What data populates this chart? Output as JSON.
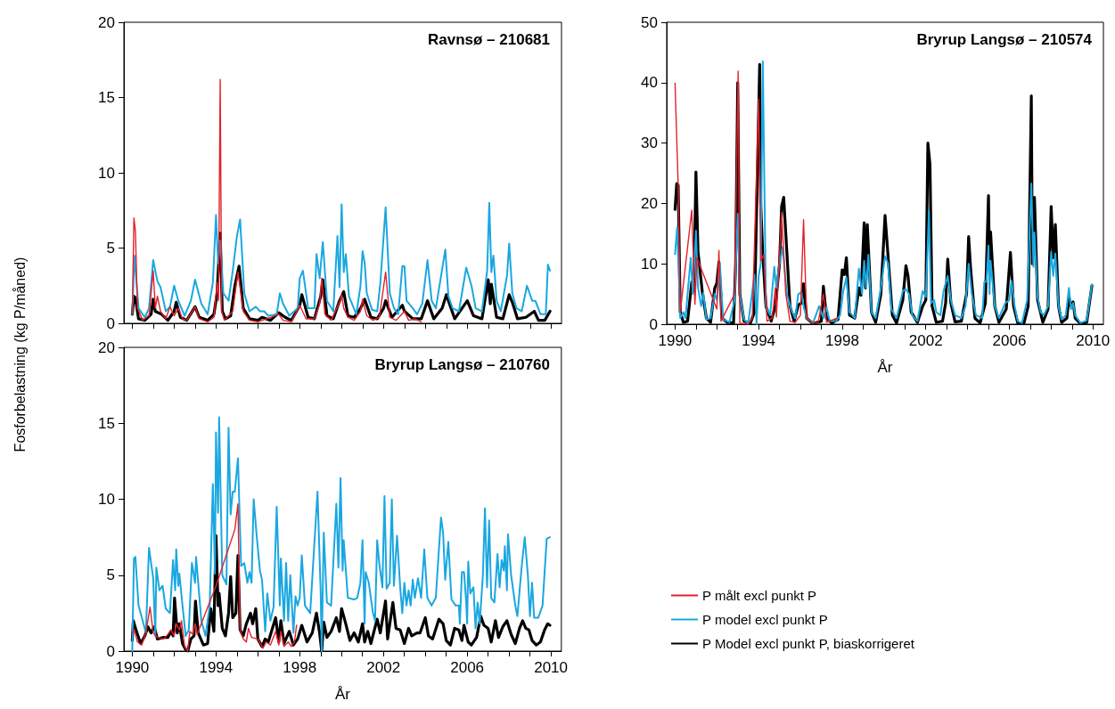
{
  "chart_data": [
    {
      "type": "line",
      "title": "Ravnsø – 210681",
      "ylabel": "Fosforbelastning (kg P/måned)",
      "xlim": [
        1989.6,
        2010.5
      ],
      "xticks": [
        1990,
        {
          "value": 1991,
          "label": null
        },
        {
          "value": 1992,
          "label": null
        },
        {
          "value": 1993,
          "label": null
        },
        1994,
        {
          "value": 1995,
          "label": null
        },
        {
          "value": 1996,
          "label": null
        },
        {
          "value": 1997,
          "label": null
        },
        1998,
        {
          "value": 1999,
          "label": null
        },
        {
          "value": 2000,
          "label": null
        },
        {
          "value": 2001,
          "label": null
        },
        2002,
        {
          "value": 2003,
          "label": null
        },
        {
          "value": 2004,
          "label": null
        },
        {
          "value": 2005,
          "label": null
        },
        2006,
        {
          "value": 2007,
          "label": null
        },
        {
          "value": 2008,
          "label": null
        },
        {
          "value": 2009,
          "label": null
        },
        2010
      ],
      "ylim": [
        0,
        20
      ],
      "yticks": [
        0,
        5,
        10,
        15,
        20
      ],
      "tick_labels": "y",
      "marker": "none",
      "line_style": "solid",
      "legend": false,
      "series": [
        {
          "color": "#e3202a",
          "x": [
            1990.0,
            1990.08,
            1990.15,
            1990.25,
            1990.5,
            1990.8,
            1991.0,
            1991.1,
            1991.2,
            1991.35,
            1991.6,
            1991.8,
            1992.0,
            1992.2,
            1992.4,
            1992.6,
            1993.0,
            1993.2,
            1993.6,
            1993.9,
            1994.05,
            1994.12,
            1994.2,
            1994.27,
            1994.4,
            1994.8,
            1995.05,
            1995.3,
            1995.6,
            1996.0,
            1997.0,
            1997.2,
            1997.6,
            1998.0,
            1998.3,
            1998.7,
            1998.95,
            1999.05,
            1999.2,
            1999.5,
            1999.9,
            2000.0,
            2000.1,
            2000.3,
            2000.6,
            2000.9,
            2001.0,
            2001.2,
            2001.5,
            2001.8,
            2002.1,
            2002.3,
            2002.6,
            2003.0,
            2003.2,
            2003.5,
            2003.8
          ],
          "values": [
            0.6,
            7.0,
            6.1,
            1.0,
            0.2,
            0.5,
            3.5,
            1.0,
            1.8,
            0.8,
            0.3,
            1.1,
            0.5,
            1.0,
            0.3,
            0.2,
            1.1,
            0.3,
            0.1,
            0.4,
            2.7,
            1.5,
            16.2,
            0.8,
            0.2,
            0.8,
            3.4,
            0.8,
            0.2,
            0.1,
            0.6,
            0.2,
            0.1,
            1.2,
            0.3,
            0.3,
            1.3,
            3.0,
            0.6,
            0.2,
            1.4,
            1.9,
            1.0,
            0.4,
            0.2,
            0.8,
            1.6,
            0.5,
            0.2,
            0.4,
            3.4,
            0.4,
            0.2,
            0.8,
            0.2,
            0.3,
            0.1
          ]
        },
        {
          "color": "#1aa7e0",
          "x": [
            1990.0,
            1990.1,
            1990.3,
            1990.6,
            1990.8,
            1991.0,
            1991.2,
            1991.35,
            1991.6,
            1991.8,
            1992.0,
            1992.2,
            1992.5,
            1992.8,
            1993.0,
            1993.3,
            1993.6,
            1993.85,
            1994.0,
            1994.1,
            1994.2,
            1994.35,
            1994.6,
            1994.8,
            1995.0,
            1995.15,
            1995.35,
            1995.6,
            1995.9,
            1996.1,
            1996.3,
            1996.5,
            1996.9,
            1997.05,
            1997.2,
            1997.5,
            1997.9,
            1998.0,
            1998.15,
            1998.4,
            1998.7,
            1998.8,
            1998.95,
            1999.1,
            1999.3,
            1999.6,
            1999.8,
            1999.9,
            2000.0,
            2000.1,
            2000.2,
            2000.35,
            2000.7,
            2000.9,
            2001.0,
            2001.1,
            2001.2,
            2001.45,
            2001.7,
            2001.85,
            2002.1,
            2002.3,
            2002.5,
            2002.7,
            2002.9,
            2003.0,
            2003.1,
            2003.4,
            2003.6,
            2003.85,
            2004.1,
            2004.3,
            2004.5,
            2004.8,
            2004.95,
            2005.1,
            2005.3,
            2005.6,
            2005.95,
            2006.2,
            2006.4,
            2006.7,
            2006.95,
            2007.05,
            2007.15,
            2007.25,
            2007.4,
            2007.6,
            2007.9,
            2008.0,
            2008.15,
            2008.35,
            2008.6,
            2008.85,
            2009.1,
            2009.25,
            2009.5,
            2009.75,
            2009.85,
            2009.95
          ],
          "values": [
            0.6,
            4.5,
            1.0,
            0.4,
            1.0,
            4.2,
            2.8,
            2.4,
            0.8,
            1.1,
            2.5,
            1.5,
            0.5,
            1.5,
            2.9,
            1.3,
            0.6,
            2.7,
            7.2,
            4.0,
            5.5,
            2.0,
            1.5,
            3.5,
            5.8,
            6.9,
            2.0,
            0.8,
            1.1,
            0.8,
            0.8,
            0.5,
            0.6,
            2.0,
            1.3,
            0.5,
            1.0,
            3.0,
            3.5,
            1.0,
            1.0,
            4.6,
            3.0,
            5.4,
            1.5,
            0.8,
            5.8,
            2.4,
            7.9,
            3.4,
            4.6,
            1.8,
            0.6,
            2.5,
            4.8,
            4.0,
            2.0,
            0.9,
            0.8,
            2.7,
            7.7,
            2.0,
            1.0,
            0.6,
            3.8,
            3.8,
            1.5,
            1.0,
            0.6,
            1.3,
            4.2,
            1.5,
            1.0,
            3.6,
            4.9,
            1.8,
            1.0,
            0.8,
            3.7,
            2.5,
            1.0,
            0.8,
            3.5,
            8.0,
            3.4,
            4.5,
            1.5,
            0.8,
            3.2,
            5.3,
            2.0,
            1.0,
            0.8,
            2.5,
            1.5,
            1.5,
            0.6,
            0.6,
            3.9,
            3.5
          ]
        },
        {
          "color": "#000000",
          "x": [
            1990.0,
            1990.08,
            1990.15,
            1990.3,
            1990.6,
            1990.9,
            1991.0,
            1991.1,
            1991.4,
            1991.7,
            1992.0,
            1992.1,
            1992.3,
            1992.6,
            1993.0,
            1993.2,
            1993.6,
            1993.9,
            1994.05,
            1994.2,
            1994.3,
            1994.45,
            1994.7,
            1994.9,
            1995.1,
            1995.3,
            1995.6,
            1996.0,
            1996.2,
            1996.6,
            1997.0,
            1997.3,
            1997.6,
            1998.0,
            1998.1,
            1998.4,
            1998.7,
            1999.0,
            1999.1,
            1999.3,
            1999.6,
            1999.9,
            2000.1,
            2000.3,
            2000.6,
            2000.9,
            2001.1,
            2001.4,
            2001.7,
            2002.0,
            2002.1,
            2002.4,
            2002.9,
            2003.0,
            2003.4,
            2003.8,
            2004.1,
            2004.4,
            2004.8,
            2005.0,
            2005.1,
            2005.4,
            2006.0,
            2006.3,
            2006.7,
            2007.0,
            2007.1,
            2007.15,
            2007.4,
            2007.7,
            2008.0,
            2008.15,
            2008.4,
            2008.8,
            2009.2,
            2009.4,
            2009.7,
            2009.95
          ],
          "values": [
            0.6,
            1.8,
            1.7,
            0.3,
            0.2,
            0.6,
            1.6,
            0.8,
            0.6,
            0.2,
            0.8,
            1.4,
            0.4,
            0.2,
            1.1,
            0.4,
            0.2,
            0.6,
            2.0,
            6.0,
            0.8,
            0.3,
            0.5,
            2.5,
            3.8,
            1.0,
            0.3,
            0.2,
            0.4,
            0.2,
            0.7,
            0.4,
            0.2,
            1.2,
            1.9,
            0.4,
            0.3,
            1.8,
            2.9,
            0.5,
            0.3,
            1.5,
            2.1,
            0.5,
            0.4,
            1.0,
            1.6,
            0.4,
            0.3,
            1.0,
            1.5,
            0.4,
            1.2,
            0.8,
            0.3,
            0.3,
            1.5,
            0.3,
            1.0,
            1.9,
            1.5,
            0.3,
            1.5,
            0.5,
            0.3,
            2.9,
            1.3,
            2.6,
            0.4,
            0.3,
            1.9,
            1.4,
            0.3,
            0.4,
            0.8,
            0.2,
            0.2,
            0.8
          ]
        }
      ]
    },
    {
      "type": "line",
      "title": "Bryrup Langsø – 210574",
      "xlabel": "År",
      "xlim": [
        1989.6,
        2010.5
      ],
      "xticks": [
        1990,
        {
          "value": 1991,
          "label": null
        },
        {
          "value": 1992,
          "label": null
        },
        {
          "value": 1993,
          "label": null
        },
        1994,
        {
          "value": 1995,
          "label": null
        },
        {
          "value": 1996,
          "label": null
        },
        {
          "value": 1997,
          "label": null
        },
        1998,
        {
          "value": 1999,
          "label": null
        },
        {
          "value": 2000,
          "label": null
        },
        {
          "value": 2001,
          "label": null
        },
        2002,
        {
          "value": 2003,
          "label": null
        },
        {
          "value": 2004,
          "label": null
        },
        {
          "value": 2005,
          "label": null
        },
        2006,
        {
          "value": 2007,
          "label": null
        },
        {
          "value": 2008,
          "label": null
        },
        {
          "value": 2009,
          "label": null
        },
        2010
      ],
      "ylim": [
        0,
        50
      ],
      "yticks": [
        0,
        10,
        20,
        30,
        40,
        50
      ],
      "marker": "none",
      "line_style": "solid",
      "legend": "bottom",
      "series": [
        {
          "name": "P målt excl punkt P",
          "color": "#e3202a",
          "x": [
            1990.0,
            1990.15,
            1990.25,
            1990.8,
            1990.95,
            1991.05,
            1992.0,
            1992.1,
            1992.2,
            1992.85,
            1993.02,
            1993.1,
            1993.5,
            1993.7,
            1994.0,
            1994.1,
            1994.25,
            1994.4,
            1994.65,
            1994.8,
            1994.85,
            1995.1,
            1995.3,
            1995.5,
            1995.75,
            1996.0,
            1996.15,
            1996.3,
            1996.6,
            1996.85,
            1997.1,
            1997.25,
            1997.75
          ],
          "values": [
            39.9,
            23.0,
            2.0,
            18.9,
            3.3,
            11.0,
            2.5,
            12.2,
            0.5,
            5.0,
            41.9,
            0.2,
            0.0,
            1.0,
            37.3,
            10.5,
            11.5,
            0.5,
            1.0,
            6.0,
            1.2,
            18.5,
            5.0,
            0.5,
            0.3,
            1.5,
            17.3,
            1.0,
            0.2,
            0.3,
            5.0,
            0.3,
            1.0
          ]
        },
        {
          "name": "P model excl punkt P",
          "color": "#1aa7e0",
          "x": [
            1990.0,
            1990.1,
            1990.25,
            1990.4,
            1990.5,
            1990.75,
            1990.85,
            1991.0,
            1991.1,
            1991.25,
            1991.35,
            1991.5,
            1991.7,
            1991.9,
            1992.0,
            1992.15,
            1992.3,
            1992.6,
            1992.85,
            1993.0,
            1993.1,
            1993.3,
            1993.5,
            1993.8,
            1993.9,
            1994.0,
            1994.1,
            1994.2,
            1994.35,
            1994.55,
            1994.75,
            1994.85,
            1994.95,
            1995.15,
            1995.35,
            1995.55,
            1995.75,
            1995.9,
            1996.05,
            1996.15,
            1996.3,
            1996.6,
            1996.9,
            1997.1,
            1997.25,
            1997.4,
            1997.7,
            1997.9,
            1998.05,
            1998.2,
            1998.35,
            1998.6,
            1998.8,
            1998.95,
            1999.05,
            1999.15,
            1999.25,
            1999.4,
            1999.6,
            1999.85,
            2000.05,
            2000.2,
            2000.35,
            2000.6,
            2000.9,
            2001.05,
            2001.2,
            2001.35,
            2001.6,
            2001.85,
            2002.0,
            2002.15,
            2002.25,
            2002.4,
            2002.5,
            2002.7,
            2002.85,
            2003.05,
            2003.2,
            2003.4,
            2003.7,
            2003.9,
            2004.05,
            2004.2,
            2004.4,
            2004.7,
            2004.8,
            2004.9,
            2005.0,
            2005.05,
            2005.1,
            2005.3,
            2005.5,
            2005.8,
            2006.0,
            2006.1,
            2006.25,
            2006.4,
            2006.6,
            2006.85,
            2007.05,
            2007.15,
            2007.2,
            2007.35,
            2007.5,
            2007.65,
            2007.85,
            2008.0,
            2008.1,
            2008.2,
            2008.35,
            2008.5,
            2008.7,
            2008.85,
            2008.95,
            2009.05,
            2009.15,
            2009.4,
            2009.7,
            2009.95
          ],
          "values": [
            11.6,
            16.0,
            1.0,
            2.0,
            1.0,
            11.0,
            5.0,
            15.5,
            6.0,
            3.0,
            5.2,
            0.8,
            1.0,
            5.0,
            4.0,
            10.0,
            0.8,
            0.3,
            4.0,
            18.3,
            5.0,
            0.8,
            0.1,
            8.2,
            0.0,
            8.0,
            10.0,
            43.5,
            3.0,
            1.5,
            9.5,
            6.0,
            9.0,
            12.8,
            5.0,
            2.5,
            1.0,
            5.0,
            5.3,
            3.0,
            1.0,
            0.2,
            3.0,
            1.0,
            2.8,
            0.5,
            0.5,
            1.5,
            5.5,
            7.8,
            2.0,
            1.0,
            9.2,
            5.0,
            10.5,
            6.0,
            11.5,
            2.0,
            1.0,
            6.0,
            11.3,
            10.0,
            2.5,
            1.0,
            5.5,
            5.8,
            5.0,
            1.5,
            0.5,
            5.5,
            4.5,
            18.8,
            3.5,
            4.0,
            2.0,
            1.5,
            5.5,
            8.0,
            4.0,
            1.5,
            1.0,
            3.0,
            10.0,
            5.0,
            1.5,
            1.0,
            7.0,
            7.0,
            13.0,
            5.0,
            10.5,
            3.0,
            1.0,
            3.5,
            4.0,
            7.2,
            3.0,
            0.5,
            0.2,
            4.0,
            23.3,
            9.5,
            15.2,
            4.5,
            2.0,
            1.5,
            3.0,
            12.0,
            8.0,
            11.7,
            3.0,
            0.8,
            1.5,
            6.0,
            2.5,
            3.5,
            1.5,
            0.2,
            0.6,
            6.6
          ]
        },
        {
          "name": "P Model excl punkt P, biaskorrigeret",
          "color": "#000000",
          "x": [
            1990.0,
            1990.08,
            1990.15,
            1990.25,
            1990.4,
            1990.6,
            1990.8,
            1990.9,
            1991.0,
            1991.1,
            1991.3,
            1991.5,
            1991.7,
            1991.9,
            1992.0,
            1992.1,
            1992.25,
            1992.5,
            1992.8,
            1992.9,
            1993.0,
            1993.1,
            1993.3,
            1993.6,
            1993.8,
            1994.05,
            1994.1,
            1994.2,
            1994.35,
            1994.6,
            1994.8,
            1995.0,
            1995.1,
            1995.2,
            1995.35,
            1995.5,
            1995.7,
            1995.9,
            1996.05,
            1996.15,
            1996.3,
            1996.6,
            1997.0,
            1997.1,
            1997.25,
            1997.5,
            1997.8,
            1998.0,
            1998.1,
            1998.2,
            1998.35,
            1998.6,
            1998.8,
            1998.9,
            1999.05,
            1999.12,
            1999.2,
            1999.4,
            1999.6,
            1999.85,
            2000.05,
            2000.2,
            2000.4,
            2000.6,
            2000.9,
            2001.05,
            2001.15,
            2001.3,
            2001.6,
            2001.85,
            2002.0,
            2002.1,
            2002.2,
            2002.3,
            2002.5,
            2002.8,
            2002.95,
            2003.05,
            2003.2,
            2003.4,
            2003.7,
            2003.95,
            2004.05,
            2004.15,
            2004.35,
            2004.6,
            2004.85,
            2005.0,
            2005.05,
            2005.1,
            2005.3,
            2005.5,
            2005.85,
            2006.05,
            2006.2,
            2006.4,
            2006.7,
            2006.9,
            2007.05,
            2007.1,
            2007.2,
            2007.35,
            2007.6,
            2007.85,
            2008.0,
            2008.1,
            2008.2,
            2008.35,
            2008.5,
            2008.75,
            2008.85,
            2008.95,
            2009.05,
            2009.15,
            2009.4,
            2009.7,
            2009.95
          ],
          "values": [
            19,
            23.3,
            23.0,
            2.0,
            0.3,
            0.5,
            7.0,
            5.5,
            25.2,
            12.0,
            5.5,
            1.0,
            0.3,
            6.0,
            6.8,
            10.3,
            1.0,
            0.3,
            0.2,
            10.0,
            40,
            5.0,
            0.5,
            0.1,
            2.0,
            43,
            20,
            11.5,
            3.0,
            0.5,
            3.0,
            10,
            19.5,
            21,
            12,
            3.0,
            0.5,
            3.2,
            3.5,
            6.7,
            1.0,
            0.1,
            0.5,
            6.3,
            1.0,
            0.2,
            0.8,
            9.0,
            8.2,
            11.0,
            1.5,
            1.0,
            6.0,
            4.8,
            16.8,
            6.0,
            16.5,
            2.0,
            0.3,
            5.0,
            18.0,
            11.0,
            1.5,
            0.2,
            4.0,
            9.7,
            8.0,
            2.0,
            0.3,
            3.0,
            4.0,
            30.0,
            26.5,
            3.0,
            0.3,
            0.5,
            3.5,
            10.8,
            3.5,
            0.4,
            0.5,
            5.0,
            14.5,
            9.0,
            1.0,
            0.2,
            3.5,
            21.3,
            9.0,
            15.3,
            3.0,
            0.3,
            2.5,
            11.9,
            3.0,
            0.2,
            0.2,
            3.0,
            37.8,
            10.0,
            21.0,
            4.0,
            0.3,
            2.5,
            19.5,
            11.0,
            16.5,
            3.0,
            0.3,
            1.0,
            4.5,
            3.0,
            3.7,
            1.0,
            0.1,
            0.3,
            6.4
          ]
        }
      ]
    },
    {
      "type": "line",
      "title": "Bryrup Langsø – 210760",
      "xlabel": "År",
      "xlim": [
        1989.6,
        2010.5
      ],
      "xticks": [
        1990,
        {
          "value": 1991,
          "label": null
        },
        {
          "value": 1992,
          "label": null
        },
        {
          "value": 1993,
          "label": null
        },
        1994,
        {
          "value": 1995,
          "label": null
        },
        {
          "value": 1996,
          "label": null
        },
        {
          "value": 1997,
          "label": null
        },
        1998,
        {
          "value": 1999,
          "label": null
        },
        {
          "value": 2000,
          "label": null
        },
        {
          "value": 2001,
          "label": null
        },
        2002,
        {
          "value": 2003,
          "label": null
        },
        {
          "value": 2004,
          "label": null
        },
        {
          "value": 2005,
          "label": null
        },
        2006,
        {
          "value": 2007,
          "label": null
        },
        {
          "value": 2008,
          "label": null
        },
        {
          "value": 2009,
          "label": null
        },
        2010
      ],
      "ylim": [
        0,
        20
      ],
      "yticks": [
        0,
        5,
        10,
        15,
        20
      ],
      "marker": "none",
      "line_style": "solid",
      "legend": false,
      "series": [
        {
          "color": "#e3202a",
          "x": [
            1990.0,
            1990.1,
            1990.25,
            1990.45,
            1990.65,
            1990.85,
            1991.0,
            1991.2,
            1991.5,
            1991.7,
            1991.85,
            1992.0,
            1992.1,
            1992.25,
            1992.35,
            1992.5,
            1992.65,
            1992.75,
            1992.9,
            1993.0,
            1993.1,
            1994.0,
            1994.9,
            1995.05,
            1995.15,
            1995.3,
            1995.45,
            1995.55,
            1995.7,
            1996.0,
            1996.25,
            1996.4,
            1996.6,
            1996.85,
            1997.0,
            1997.1,
            1997.25,
            1997.45,
            1997.6,
            1997.75,
            1997.85
          ],
          "values": [
            1.2,
            1.4,
            0.6,
            0.4,
            1.2,
            2.9,
            1.2,
            0.9,
            0.8,
            1.1,
            1.4,
            1.0,
            1.8,
            1.4,
            2.0,
            0.3,
            0.0,
            1.3,
            1.1,
            1.8,
            1.1,
            4.3,
            8.0,
            9.7,
            1.4,
            0.8,
            0.6,
            1.5,
            0.9,
            0.8,
            0.2,
            0.6,
            0.4,
            1.3,
            0.4,
            1.3,
            0.3,
            0.6,
            0.3,
            0.6,
            1.7
          ]
        },
        {
          "color": "#1aa7e0",
          "x": [
            1990.0,
            1990.08,
            1990.15,
            1990.3,
            1990.5,
            1990.65,
            1990.8,
            1991.0,
            1991.1,
            1991.15,
            1991.3,
            1991.45,
            1991.6,
            1991.8,
            1991.95,
            1992.05,
            1992.1,
            1992.2,
            1992.25,
            1992.4,
            1992.55,
            1992.7,
            1992.85,
            1993.0,
            1993.05,
            1993.3,
            1993.5,
            1993.7,
            1993.85,
            1993.95,
            1994.0,
            1994.1,
            1994.15,
            1994.3,
            1994.5,
            1994.6,
            1994.7,
            1994.8,
            1994.9,
            1995.05,
            1995.2,
            1995.35,
            1995.5,
            1995.6,
            1995.7,
            1995.8,
            1995.95,
            1996.1,
            1996.2,
            1996.35,
            1996.45,
            1996.6,
            1996.75,
            1996.9,
            1997.05,
            1997.1,
            1997.25,
            1997.35,
            1997.45,
            1997.55,
            1997.7,
            1997.8,
            1997.9,
            1998.0,
            1998.1,
            1998.25,
            1998.5,
            1998.85,
            1999.0,
            1999.05,
            1999.15,
            1999.3,
            1999.5,
            1999.75,
            1999.85,
            1999.95,
            2000.05,
            2000.1,
            2000.3,
            2000.6,
            2000.75,
            2000.9,
            2001.0,
            2001.1,
            2001.15,
            2001.3,
            2001.5,
            2001.6,
            2001.7,
            2001.8,
            2001.95,
            2002.05,
            2002.15,
            2002.3,
            2002.4,
            2002.5,
            2002.65,
            2002.8,
            2002.9,
            2003.0,
            2003.1,
            2003.2,
            2003.3,
            2003.4,
            2003.5,
            2003.65,
            2003.8,
            2003.95,
            2004.1,
            2004.3,
            2004.5,
            2004.75,
            2004.85,
            2004.95,
            2005.1,
            2005.25,
            2005.45,
            2005.6,
            2005.65,
            2005.75,
            2005.85,
            2005.95,
            2006.0,
            2006.05,
            2006.15,
            2006.3,
            2006.4,
            2006.5,
            2006.6,
            2006.75,
            2006.85,
            2006.95,
            2007.05,
            2007.15,
            2007.3,
            2007.45,
            2007.55,
            2007.65,
            2007.75,
            2007.8,
            2007.9,
            2007.95,
            2008.1,
            2008.3,
            2008.4,
            2008.6,
            2008.75,
            2008.9,
            2009.0,
            2009.1,
            2009.2,
            2009.4,
            2009.6,
            2009.8,
            2009.95
          ],
          "values": [
            0,
            6.1,
            6.2,
            3.0,
            2.0,
            1.2,
            6.8,
            4.8,
            1.0,
            5.5,
            4.0,
            4.3,
            2.8,
            2.5,
            6.0,
            4.0,
            6.7,
            4.3,
            5.1,
            3.0,
            1.0,
            1.4,
            5.8,
            4.5,
            6.2,
            2.0,
            1.0,
            3.0,
            11.0,
            5.1,
            14.4,
            9.1,
            15.4,
            5.0,
            4.4,
            14.7,
            9.0,
            10.5,
            10.5,
            12.7,
            5.6,
            5.8,
            4.5,
            5.2,
            4.5,
            10.0,
            7.5,
            5.3,
            4.7,
            1.3,
            3.8,
            2.0,
            2.9,
            9.5,
            3.0,
            6.1,
            2.0,
            5.8,
            2.0,
            5.0,
            1.2,
            3.6,
            3.0,
            3.5,
            6.3,
            3.0,
            2.5,
            10.5,
            4.0,
            0,
            7.8,
            3.2,
            3.0,
            9.7,
            5.5,
            11.4,
            5.3,
            7.3,
            3.5,
            3.4,
            3.5,
            4.5,
            7.3,
            1.8,
            5.2,
            4.5,
            2.5,
            2.0,
            7.3,
            5.8,
            4.2,
            10.2,
            4.1,
            4.5,
            10.0,
            4.3,
            7.6,
            4.2,
            2.5,
            4.5,
            3.0,
            4.0,
            3.0,
            4.7,
            3.5,
            4.8,
            3.5,
            6.7,
            3.5,
            3.0,
            3.5,
            8.8,
            7.8,
            4.7,
            7.2,
            3.4,
            3.0,
            3.0,
            1.8,
            5.2,
            5.2,
            3.3,
            1.8,
            5.9,
            3.8,
            4.2,
            1.5,
            3.2,
            1.8,
            5.0,
            9.4,
            4.2,
            8.6,
            3.5,
            3.2,
            6.4,
            4.2,
            6.0,
            5.3,
            6.9,
            4.0,
            7.7,
            5.0,
            3.0,
            2.3,
            5.5,
            7.5,
            5.0,
            2.3,
            4.5,
            2.2,
            2.2,
            3.0,
            7.4,
            7.5
          ]
        },
        {
          "color": "#000000",
          "x": [
            1990.0,
            1990.05,
            1990.2,
            1990.4,
            1990.6,
            1990.75,
            1990.9,
            1991.05,
            1991.2,
            1991.5,
            1991.7,
            1991.85,
            1991.95,
            1992.02,
            1992.15,
            1992.25,
            1992.4,
            1992.55,
            1992.65,
            1992.8,
            1992.95,
            1993.02,
            1993.15,
            1993.4,
            1993.6,
            1993.75,
            1993.9,
            1994.0,
            1994.1,
            1994.15,
            1994.3,
            1994.45,
            1994.6,
            1994.7,
            1994.8,
            1994.95,
            1995.05,
            1995.15,
            1995.3,
            1995.45,
            1995.65,
            1995.75,
            1995.9,
            1996.0,
            1996.2,
            1996.35,
            1996.5,
            1996.85,
            1997.0,
            1997.1,
            1997.25,
            1997.5,
            1997.7,
            1997.9,
            1998.1,
            1998.35,
            1998.6,
            1998.8,
            1998.95,
            1999.05,
            1999.15,
            1999.3,
            1999.5,
            1999.75,
            1999.9,
            2000.0,
            2000.2,
            2000.4,
            2000.6,
            2000.8,
            2001.0,
            2001.1,
            2001.25,
            2001.4,
            2001.7,
            2001.85,
            2002.1,
            2002.2,
            2002.45,
            2002.6,
            2002.8,
            2003.0,
            2003.2,
            2003.35,
            2003.6,
            2003.75,
            2004.0,
            2004.15,
            2004.35,
            2004.65,
            2004.85,
            2005.0,
            2005.2,
            2005.4,
            2005.6,
            2005.75,
            2005.85,
            2006.05,
            2006.2,
            2006.45,
            2006.65,
            2006.8,
            2007.0,
            2007.15,
            2007.35,
            2007.5,
            2007.7,
            2007.9,
            2008.1,
            2008.3,
            2008.5,
            2008.65,
            2008.8,
            2008.95,
            2009.1,
            2009.3,
            2009.5,
            2009.7,
            2009.85,
            2009.95
          ],
          "values": [
            0.7,
            2.0,
            1.3,
            0.5,
            1.0,
            1.6,
            1.2,
            1.6,
            0.8,
            0.9,
            0.9,
            1.3,
            1.0,
            3.5,
            1.2,
            1.8,
            0.5,
            0.1,
            0.0,
            0.8,
            1.0,
            3.3,
            1.2,
            0.4,
            0.5,
            2.8,
            1.3,
            7.6,
            3.0,
            3.8,
            1.5,
            1.0,
            2.5,
            4.9,
            2.2,
            2.5,
            6.3,
            1.4,
            1.0,
            1.8,
            2.5,
            1.8,
            2.8,
            0.8,
            0.3,
            0.8,
            0.6,
            2.2,
            0.6,
            2.0,
            0.5,
            1.3,
            0.4,
            0.8,
            1.7,
            0.6,
            1.2,
            2.5,
            1.2,
            0,
            1.9,
            0.9,
            1.3,
            2.2,
            1.3,
            2.8,
            1.8,
            0.7,
            1.2,
            0.6,
            1.8,
            0.6,
            1.3,
            0.5,
            2.1,
            1.2,
            3.3,
            0.8,
            3.2,
            1.5,
            1.4,
            0.5,
            1.5,
            1.0,
            1.2,
            1.2,
            2.2,
            1.0,
            0.8,
            2.1,
            1.8,
            0.7,
            0.4,
            1.5,
            1.4,
            0.7,
            1.7,
            0.6,
            0.4,
            0.9,
            2.3,
            1.7,
            1.5,
            0.6,
            2.0,
            0.9,
            1.6,
            2.0,
            1.1,
            0.5,
            1.5,
            2.0,
            1.5,
            1.4,
            0.7,
            0.4,
            0.6,
            1.4,
            1.8,
            1.7
          ]
        }
      ]
    }
  ]
}
